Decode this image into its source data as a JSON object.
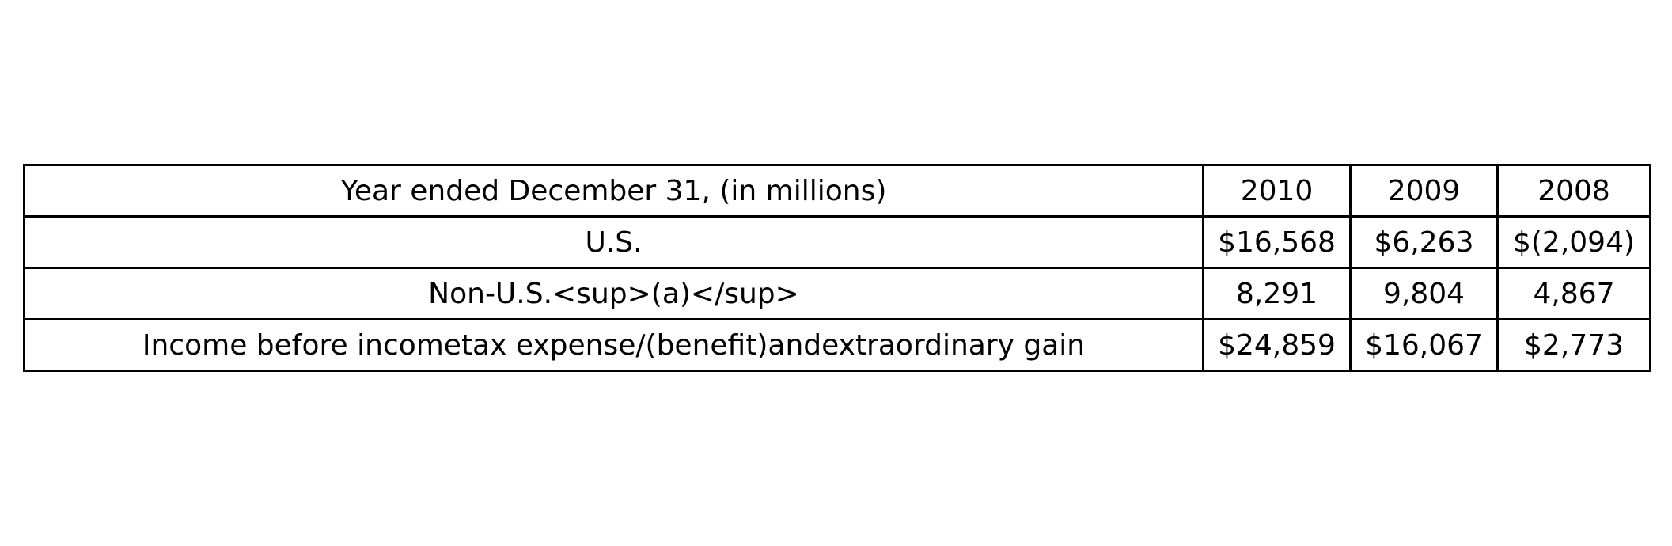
{
  "chart_data": {
    "type": "table",
    "columns": [
      "Year ended December 31, (in millions)",
      "2010",
      "2009",
      "2008"
    ],
    "rows": [
      [
        "U.S.",
        "$16,568",
        "$6,263",
        "$(2,094)"
      ],
      [
        "Non-U.S.<sup>(a)</sup>",
        "8,291",
        "9,804",
        "4,867"
      ],
      [
        "Income before incometax expense/(benefit)andextraordinary gain",
        "$24,859",
        "$16,067",
        "$2,773"
      ]
    ]
  }
}
